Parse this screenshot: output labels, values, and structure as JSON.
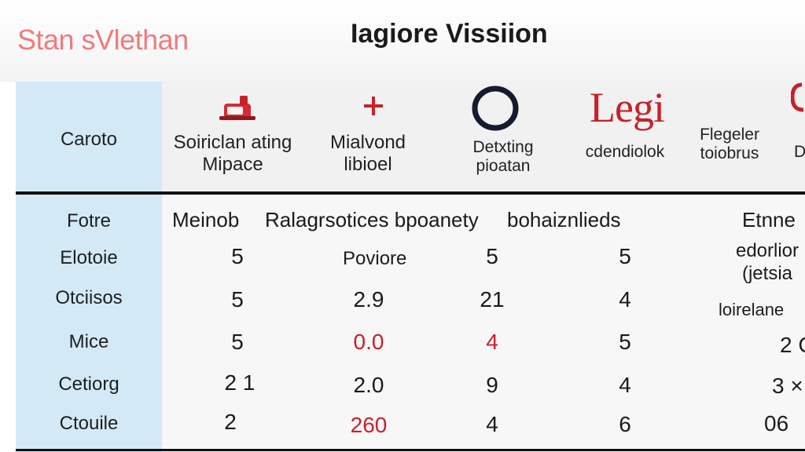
{
  "brand": "Stan sVlethan",
  "title": "Iagiore Vissiion",
  "corner_label": "Caroto",
  "header_columns": [
    {
      "label": "Soiriclan ating Mipace",
      "icon": "machine-icon"
    },
    {
      "label": "Mialvond libioel",
      "icon": "plus-icon"
    },
    {
      "label": "Detxting pioatan",
      "icon": "ring-icon"
    },
    {
      "label": "cdendiolok",
      "icon": "logo-wordmark",
      "wordmark": "Legi"
    },
    {
      "label": "Flegeler toiobrus"
    },
    {
      "label": "D"
    }
  ],
  "subheader": {
    "row_label": "Fotre",
    "col1": "Meinob",
    "col2": "Ralagrsotices bpoanety",
    "col3": "bohaiznlieds",
    "col4": "Etnne"
  },
  "rows": [
    {
      "label": "Elotoie",
      "c1": "5",
      "c2": "Poviore",
      "c3": "5",
      "c4": "5",
      "c5": "edorlior (jetsia"
    },
    {
      "label": "Otciisos",
      "c1": "5",
      "c2": "2.9",
      "c3": "21",
      "c4": "4",
      "c5": "loirelane"
    },
    {
      "label": "Mice",
      "c1": "5",
      "c2": "0.0",
      "c3": "4",
      "c4": "5",
      "c5": "2 C"
    },
    {
      "label": "Cetiorg",
      "c1": "2 1",
      "c2": "2.0",
      "c3": "9",
      "c4": "4",
      "c5": "3 ×"
    },
    {
      "label": "Ctouile",
      "c1": "2",
      "c2": "260",
      "c3": "4",
      "c4": "6",
      "c5": "06"
    }
  ],
  "colors": {
    "brand": "#ef7b7e",
    "accent_red": "#c8202a",
    "left_col": "#d3e9f6"
  }
}
